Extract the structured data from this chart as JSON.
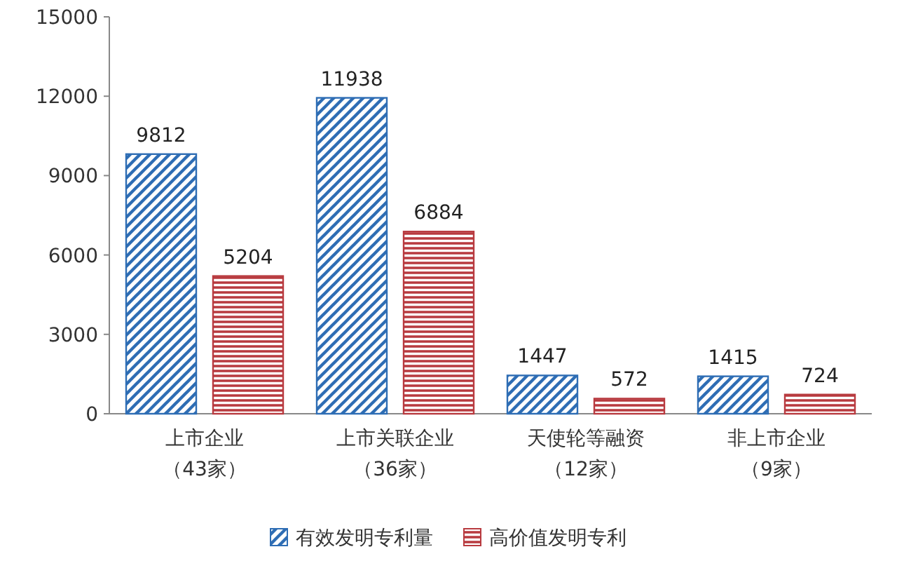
{
  "chart_data": {
    "type": "bar",
    "categories": [
      "上市企业（43家）",
      "上市关联企业（36家）",
      "天使轮等融资（12家）",
      "非上市企业（9家）"
    ],
    "series": [
      {
        "name": "有效发明专利量",
        "color": "#2e6db4",
        "values": [
          9812,
          11938,
          1447,
          1415
        ]
      },
      {
        "name": "高价值发明专利",
        "color": "#b83a3f",
        "values": [
          5204,
          6884,
          572,
          724
        ]
      }
    ],
    "ylim": [
      0,
      15000
    ],
    "yticks": [
      0,
      3000,
      6000,
      9000,
      12000,
      15000
    ],
    "data_labels": true,
    "legend": "bottom",
    "grid": false
  }
}
